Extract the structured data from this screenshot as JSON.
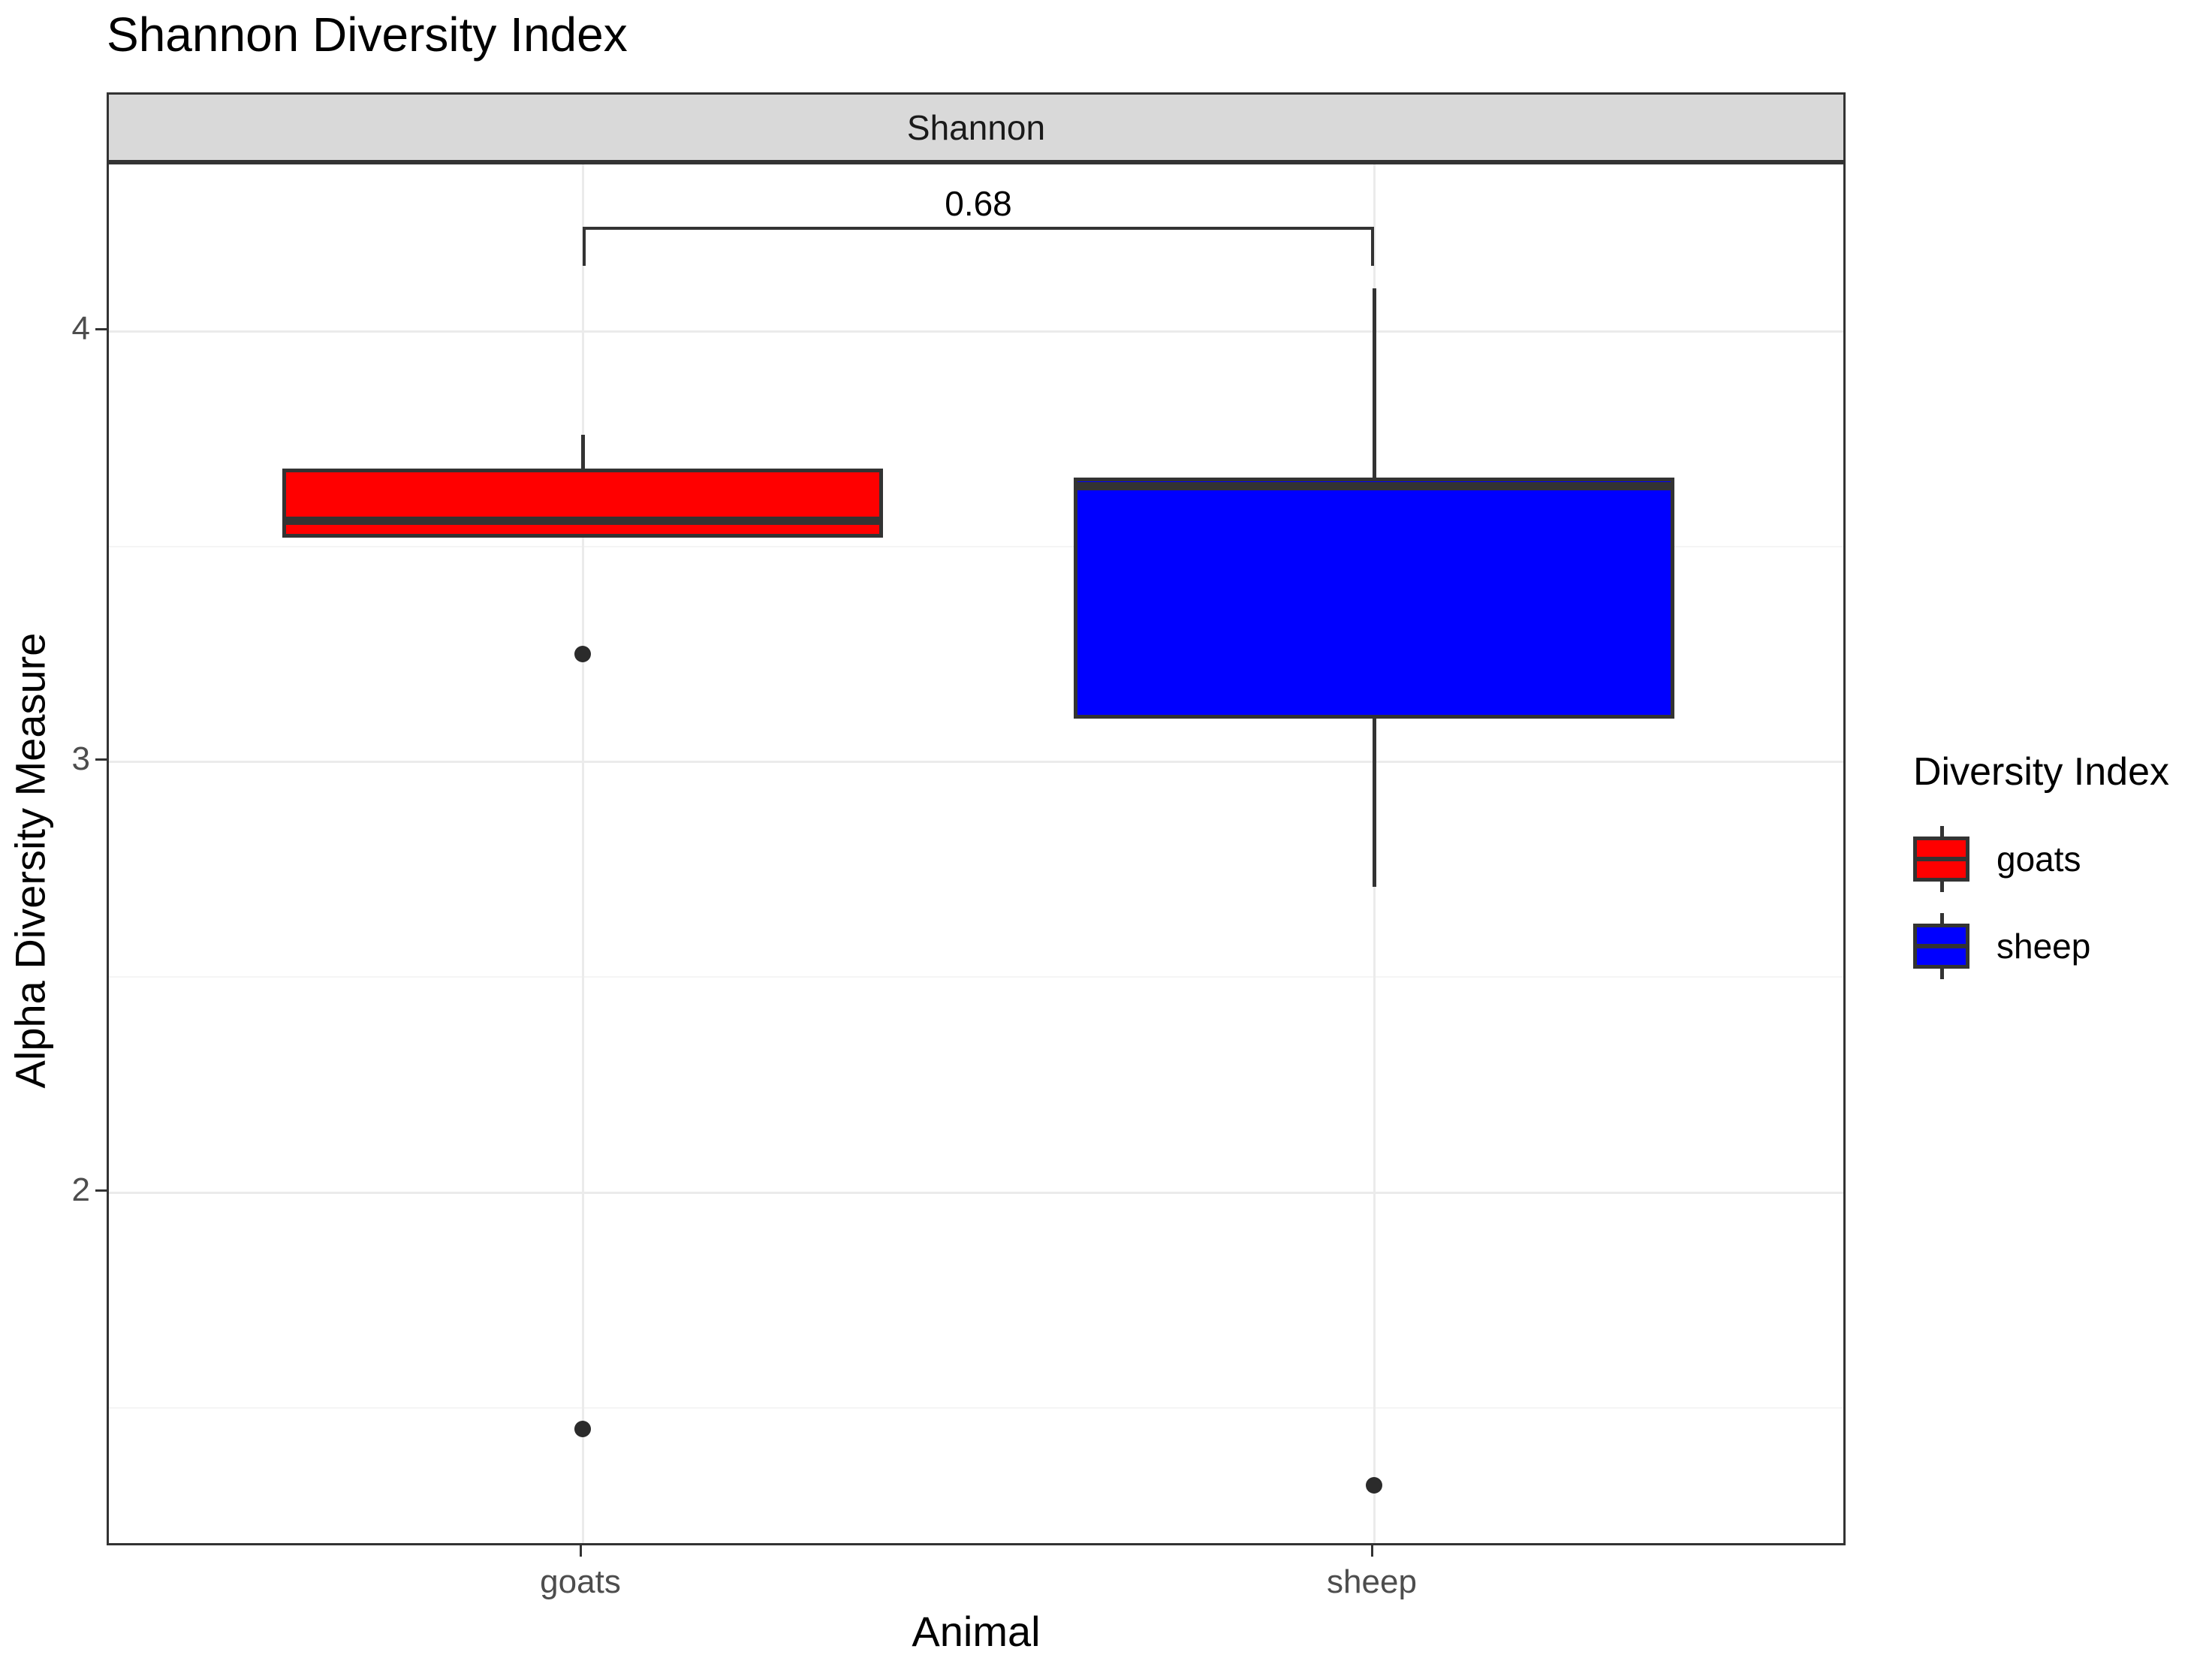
{
  "title": "Shannon Diversity Index",
  "facet": {
    "label": "Shannon"
  },
  "y_axis": {
    "title": "Alpha Diversity Measure",
    "tick_labels": [
      "4",
      "3",
      "2"
    ]
  },
  "x_axis": {
    "title": "Animal",
    "tick_labels": [
      "goats",
      "sheep"
    ]
  },
  "annotation": {
    "significance_label": "0.68"
  },
  "legend": {
    "title": "Diversity Index",
    "items": [
      {
        "label": "goats",
        "color": "#ff0000"
      },
      {
        "label": "sheep",
        "color": "#0000ff"
      }
    ]
  },
  "colors": {
    "goats_fill": "#ff0000",
    "sheep_fill": "#0000ff",
    "box_border": "#333333",
    "strip_fill": "#d9d9d9",
    "gridline_major": "#ebebeb",
    "gridline_minor": "#f5f5f5",
    "axis_text": "#4d4d4d"
  },
  "chart_data": {
    "type": "boxplot",
    "title": "Shannon Diversity Index",
    "facet_label": "Shannon",
    "xlabel": "Animal",
    "ylabel": "Alpha Diversity Measure",
    "ylim": [
      1.17,
      4.39
    ],
    "y_major_ticks": [
      4,
      3,
      2
    ],
    "y_minor_gridlines": [
      3.5,
      2.5,
      1.5
    ],
    "grid": true,
    "legend_position": "right",
    "categories": [
      "goats",
      "sheep"
    ],
    "series": [
      {
        "name": "goats",
        "color": "#ff0000",
        "whisker_high": 3.76,
        "q3": 3.68,
        "median": 3.56,
        "q1": 3.52,
        "whisker_low": 3.52,
        "outliers": [
          3.25,
          1.45
        ]
      },
      {
        "name": "sheep",
        "color": "#0000ff",
        "whisker_high": 4.1,
        "q3": 3.66,
        "median": 3.64,
        "q1": 3.1,
        "whisker_low": 2.71,
        "outliers": [
          1.32
        ]
      }
    ],
    "significance_bracket": {
      "label": "0.68",
      "from": "goats",
      "to": "sheep",
      "y_value": 4.243,
      "tick_drop": 0.09
    }
  }
}
